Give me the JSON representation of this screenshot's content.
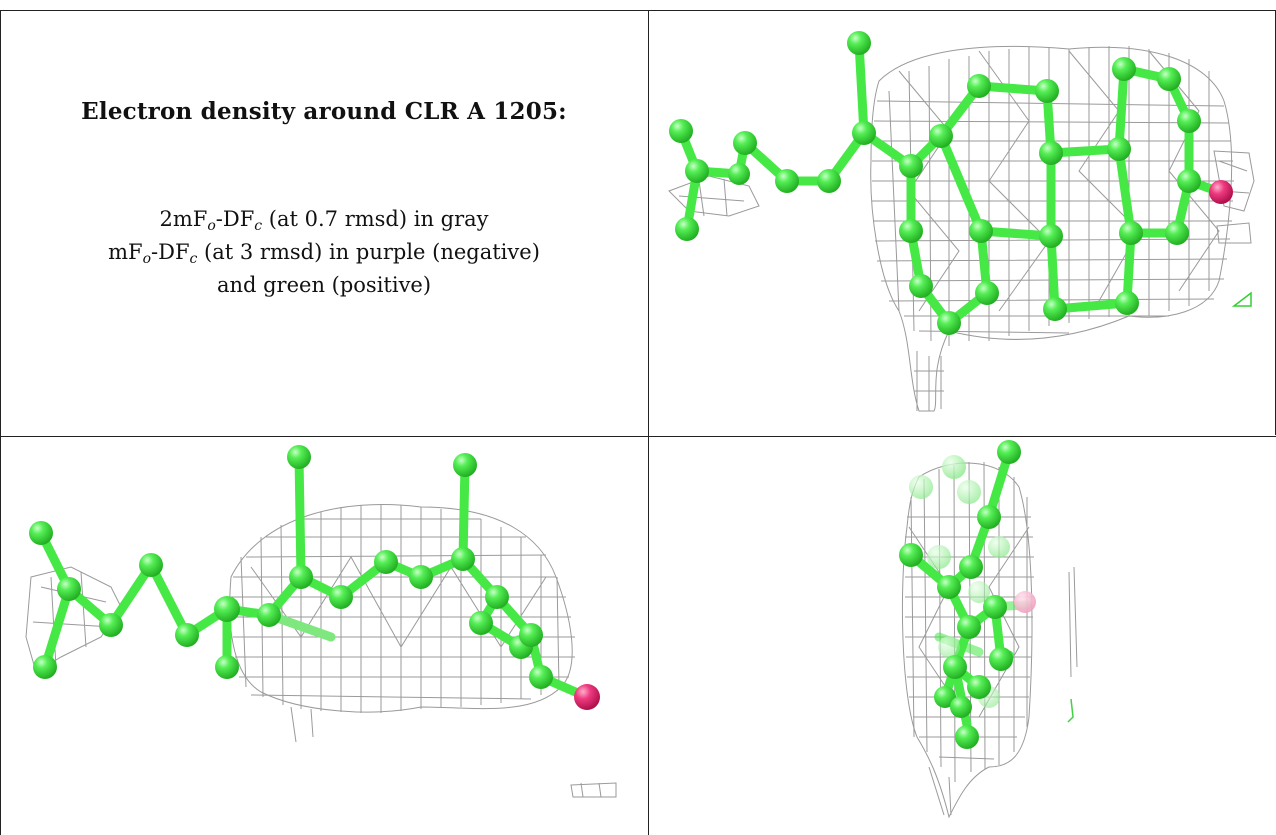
{
  "caption": {
    "title": "Electron density around CLR A 1205:",
    "line1": {
      "pre": "2mF",
      "sub1": "o",
      "mid": "-DF",
      "sub2": "c",
      "post": " (at 0.7 rmsd) in gray"
    },
    "line2": {
      "pre": "mF",
      "sub1": "o",
      "mid": "-DF",
      "sub2": "c",
      "post": " (at 3 rmsd) in purple (negative)"
    },
    "line3": "and green (positive)"
  },
  "colors": {
    "carbon_atom": "#3fe63f",
    "oxygen_atom": "#e0286e",
    "mesh_2fofc": "#9a9a9a",
    "border": "#222222",
    "background": "#ffffff"
  },
  "panels": [
    {
      "name": "caption-panel"
    },
    {
      "name": "density-view-top-right"
    },
    {
      "name": "density-view-bottom-left"
    },
    {
      "name": "density-view-bottom-right"
    }
  ]
}
